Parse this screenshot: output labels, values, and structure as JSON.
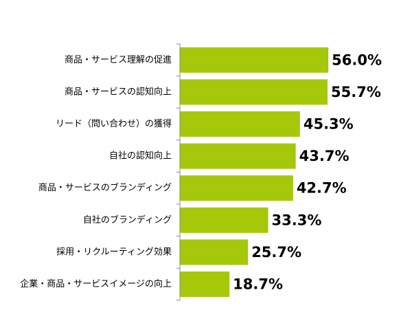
{
  "chart_data": {
    "type": "bar",
    "orientation": "horizontal",
    "categories": [
      "商品・サービス理解の促進",
      "商品・サービスの認知向上",
      "リード（問い合わせ）の獲得",
      "自社の認知向上",
      "商品・サービスのブランディング",
      "自社のブランディング",
      "採用・リクルーティング効果",
      "企業・商品・サービスイメージの向上"
    ],
    "values": [
      56.0,
      55.7,
      45.3,
      43.7,
      42.7,
      33.3,
      25.7,
      18.7
    ],
    "value_labels": [
      "56.0%",
      "55.7%",
      "45.3%",
      "43.7%",
      "42.7%",
      "33.3%",
      "25.7%",
      "18.7%"
    ],
    "bar_color": "#a5c80a",
    "axis_color": "#8c8c8c",
    "title": "",
    "xlabel": "",
    "ylabel": "",
    "xlim": [
      0,
      100
    ],
    "grid": false,
    "legend": "none"
  }
}
